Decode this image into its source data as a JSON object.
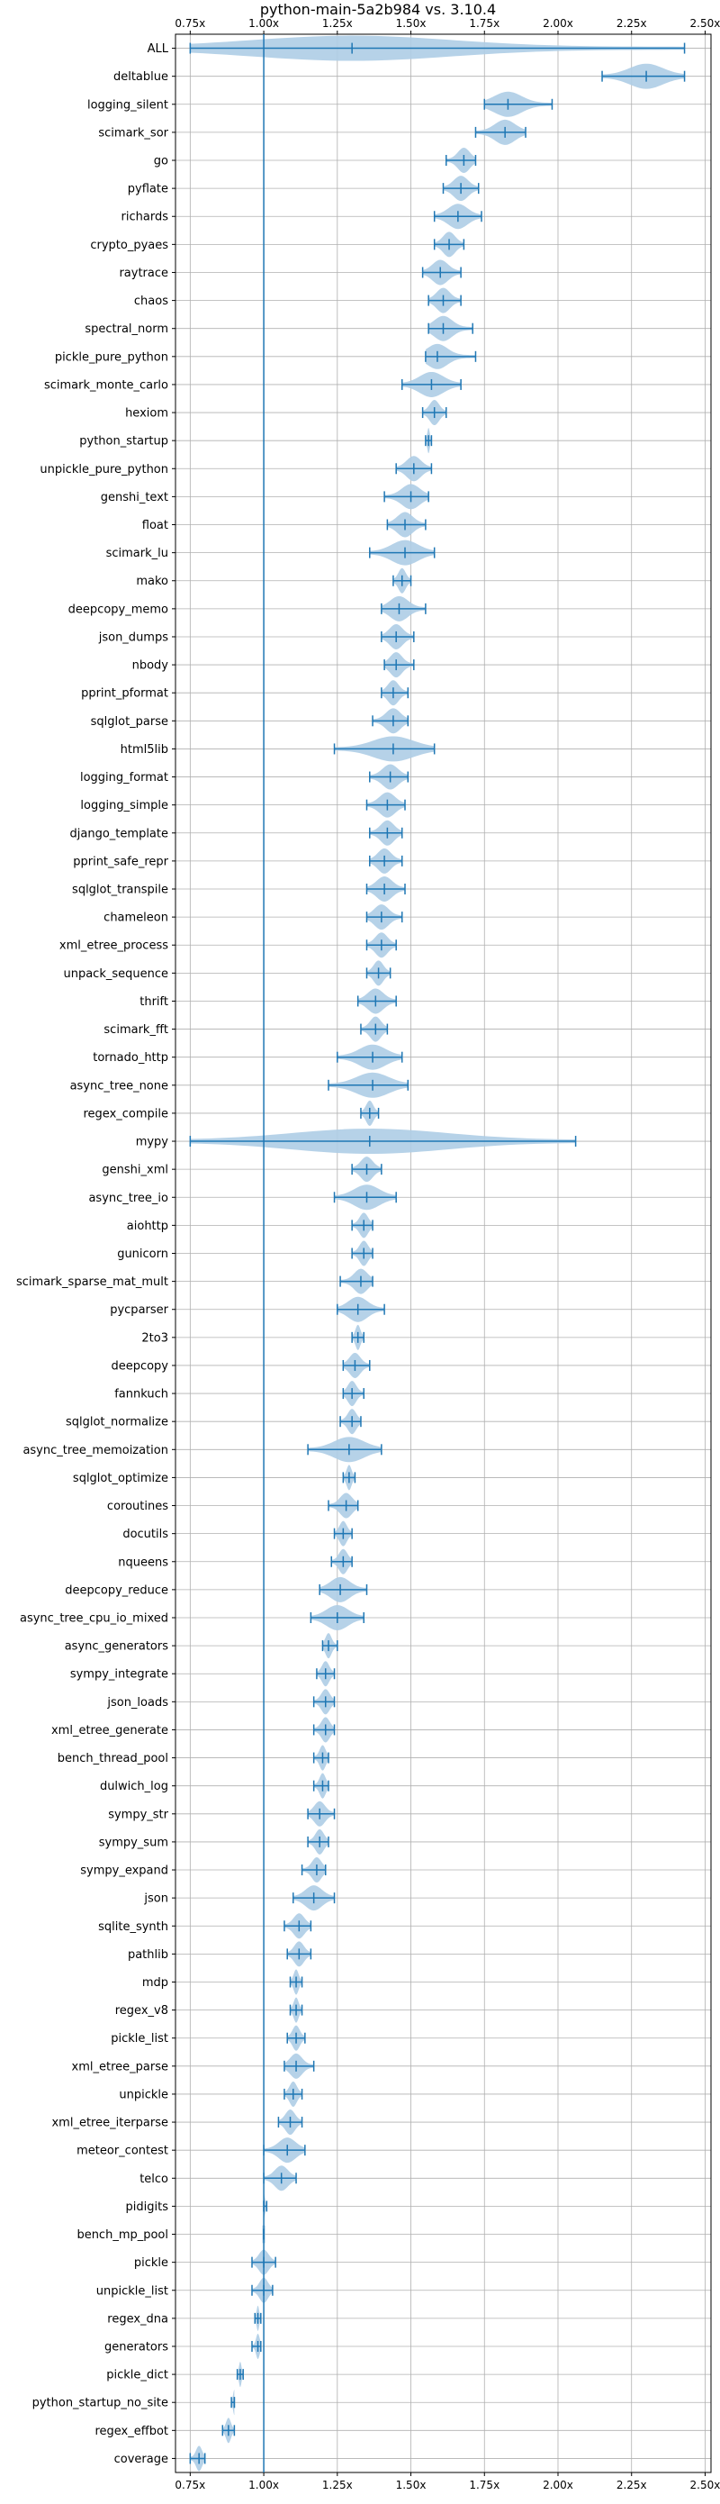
{
  "chart_data": {
    "type": "violin",
    "title": "python-main-5a2b984 vs. 3.10.4",
    "xlim": [
      0.7,
      2.52
    ],
    "xticks": [
      {
        "value": 0.75,
        "label": "0.75x"
      },
      {
        "value": 1.0,
        "label": "1.00x"
      },
      {
        "value": 1.25,
        "label": "1.25x"
      },
      {
        "value": 1.5,
        "label": "1.50x"
      },
      {
        "value": 1.75,
        "label": "1.75x"
      },
      {
        "value": 2.0,
        "label": "2.00x"
      },
      {
        "value": 2.25,
        "label": "2.25x"
      },
      {
        "value": 2.5,
        "label": "2.50x"
      }
    ],
    "reference_line": 1.0,
    "grid": true,
    "colors": {
      "stroke": "#1f77b4",
      "fill": "#aecde6",
      "grid": "#b0b0b0"
    },
    "benchmarks": [
      {
        "name": "ALL",
        "min": 0.75,
        "max": 2.43,
        "median": 1.3
      },
      {
        "name": "deltablue",
        "min": 2.15,
        "max": 2.43,
        "median": 2.3
      },
      {
        "name": "logging_silent",
        "min": 1.75,
        "max": 1.98,
        "median": 1.83
      },
      {
        "name": "scimark_sor",
        "min": 1.72,
        "max": 1.89,
        "median": 1.82
      },
      {
        "name": "go",
        "min": 1.62,
        "max": 1.72,
        "median": 1.68
      },
      {
        "name": "pyflate",
        "min": 1.61,
        "max": 1.73,
        "median": 1.67
      },
      {
        "name": "richards",
        "min": 1.58,
        "max": 1.74,
        "median": 1.66
      },
      {
        "name": "crypto_pyaes",
        "min": 1.58,
        "max": 1.68,
        "median": 1.63
      },
      {
        "name": "raytrace",
        "min": 1.54,
        "max": 1.67,
        "median": 1.6
      },
      {
        "name": "chaos",
        "min": 1.56,
        "max": 1.67,
        "median": 1.61
      },
      {
        "name": "spectral_norm",
        "min": 1.56,
        "max": 1.71,
        "median": 1.61
      },
      {
        "name": "pickle_pure_python",
        "min": 1.55,
        "max": 1.72,
        "median": 1.59
      },
      {
        "name": "scimark_monte_carlo",
        "min": 1.47,
        "max": 1.67,
        "median": 1.57
      },
      {
        "name": "hexiom",
        "min": 1.54,
        "max": 1.62,
        "median": 1.58
      },
      {
        "name": "python_startup",
        "min": 1.55,
        "max": 1.57,
        "median": 1.56
      },
      {
        "name": "unpickle_pure_python",
        "min": 1.45,
        "max": 1.57,
        "median": 1.51
      },
      {
        "name": "genshi_text",
        "min": 1.41,
        "max": 1.56,
        "median": 1.5
      },
      {
        "name": "float",
        "min": 1.42,
        "max": 1.55,
        "median": 1.48
      },
      {
        "name": "scimark_lu",
        "min": 1.36,
        "max": 1.58,
        "median": 1.48
      },
      {
        "name": "mako",
        "min": 1.44,
        "max": 1.5,
        "median": 1.47
      },
      {
        "name": "deepcopy_memo",
        "min": 1.4,
        "max": 1.55,
        "median": 1.46
      },
      {
        "name": "json_dumps",
        "min": 1.4,
        "max": 1.51,
        "median": 1.45
      },
      {
        "name": "nbody",
        "min": 1.41,
        "max": 1.51,
        "median": 1.45
      },
      {
        "name": "pprint_pformat",
        "min": 1.4,
        "max": 1.49,
        "median": 1.44
      },
      {
        "name": "sqlglot_parse",
        "min": 1.37,
        "max": 1.49,
        "median": 1.44
      },
      {
        "name": "html5lib",
        "min": 1.24,
        "max": 1.58,
        "median": 1.44
      },
      {
        "name": "logging_format",
        "min": 1.36,
        "max": 1.49,
        "median": 1.43
      },
      {
        "name": "logging_simple",
        "min": 1.35,
        "max": 1.48,
        "median": 1.42
      },
      {
        "name": "django_template",
        "min": 1.36,
        "max": 1.47,
        "median": 1.42
      },
      {
        "name": "pprint_safe_repr",
        "min": 1.36,
        "max": 1.47,
        "median": 1.41
      },
      {
        "name": "sqlglot_transpile",
        "min": 1.35,
        "max": 1.48,
        "median": 1.41
      },
      {
        "name": "chameleon",
        "min": 1.35,
        "max": 1.47,
        "median": 1.4
      },
      {
        "name": "xml_etree_process",
        "min": 1.35,
        "max": 1.45,
        "median": 1.4
      },
      {
        "name": "unpack_sequence",
        "min": 1.35,
        "max": 1.43,
        "median": 1.39
      },
      {
        "name": "thrift",
        "min": 1.32,
        "max": 1.45,
        "median": 1.38
      },
      {
        "name": "scimark_fft",
        "min": 1.33,
        "max": 1.42,
        "median": 1.38
      },
      {
        "name": "tornado_http",
        "min": 1.25,
        "max": 1.47,
        "median": 1.37
      },
      {
        "name": "async_tree_none",
        "min": 1.22,
        "max": 1.49,
        "median": 1.37
      },
      {
        "name": "regex_compile",
        "min": 1.33,
        "max": 1.39,
        "median": 1.36
      },
      {
        "name": "mypy",
        "min": 0.75,
        "max": 2.06,
        "median": 1.36
      },
      {
        "name": "genshi_xml",
        "min": 1.3,
        "max": 1.4,
        "median": 1.35
      },
      {
        "name": "async_tree_io",
        "min": 1.24,
        "max": 1.45,
        "median": 1.35
      },
      {
        "name": "aiohttp",
        "min": 1.3,
        "max": 1.37,
        "median": 1.34
      },
      {
        "name": "gunicorn",
        "min": 1.3,
        "max": 1.37,
        "median": 1.34
      },
      {
        "name": "scimark_sparse_mat_mult",
        "min": 1.26,
        "max": 1.37,
        "median": 1.33
      },
      {
        "name": "pycparser",
        "min": 1.25,
        "max": 1.41,
        "median": 1.32
      },
      {
        "name": "2to3",
        "min": 1.3,
        "max": 1.34,
        "median": 1.32
      },
      {
        "name": "deepcopy",
        "min": 1.27,
        "max": 1.36,
        "median": 1.31
      },
      {
        "name": "fannkuch",
        "min": 1.27,
        "max": 1.34,
        "median": 1.3
      },
      {
        "name": "sqlglot_normalize",
        "min": 1.26,
        "max": 1.33,
        "median": 1.3
      },
      {
        "name": "async_tree_memoization",
        "min": 1.15,
        "max": 1.4,
        "median": 1.29
      },
      {
        "name": "sqlglot_optimize",
        "min": 1.27,
        "max": 1.31,
        "median": 1.29
      },
      {
        "name": "coroutines",
        "min": 1.22,
        "max": 1.32,
        "median": 1.28
      },
      {
        "name": "docutils",
        "min": 1.24,
        "max": 1.3,
        "median": 1.27
      },
      {
        "name": "nqueens",
        "min": 1.23,
        "max": 1.3,
        "median": 1.27
      },
      {
        "name": "deepcopy_reduce",
        "min": 1.19,
        "max": 1.35,
        "median": 1.26
      },
      {
        "name": "async_tree_cpu_io_mixed",
        "min": 1.16,
        "max": 1.34,
        "median": 1.25
      },
      {
        "name": "async_generators",
        "min": 1.2,
        "max": 1.25,
        "median": 1.22
      },
      {
        "name": "sympy_integrate",
        "min": 1.18,
        "max": 1.24,
        "median": 1.21
      },
      {
        "name": "json_loads",
        "min": 1.17,
        "max": 1.24,
        "median": 1.21
      },
      {
        "name": "xml_etree_generate",
        "min": 1.17,
        "max": 1.24,
        "median": 1.21
      },
      {
        "name": "bench_thread_pool",
        "min": 1.17,
        "max": 1.22,
        "median": 1.2
      },
      {
        "name": "dulwich_log",
        "min": 1.17,
        "max": 1.22,
        "median": 1.2
      },
      {
        "name": "sympy_str",
        "min": 1.15,
        "max": 1.24,
        "median": 1.19
      },
      {
        "name": "sympy_sum",
        "min": 1.15,
        "max": 1.22,
        "median": 1.19
      },
      {
        "name": "sympy_expand",
        "min": 1.13,
        "max": 1.21,
        "median": 1.18
      },
      {
        "name": "json",
        "min": 1.1,
        "max": 1.24,
        "median": 1.17
      },
      {
        "name": "sqlite_synth",
        "min": 1.07,
        "max": 1.16,
        "median": 1.12
      },
      {
        "name": "pathlib",
        "min": 1.08,
        "max": 1.16,
        "median": 1.12
      },
      {
        "name": "mdp",
        "min": 1.09,
        "max": 1.13,
        "median": 1.11
      },
      {
        "name": "regex_v8",
        "min": 1.09,
        "max": 1.13,
        "median": 1.11
      },
      {
        "name": "pickle_list",
        "min": 1.08,
        "max": 1.14,
        "median": 1.11
      },
      {
        "name": "xml_etree_parse",
        "min": 1.07,
        "max": 1.17,
        "median": 1.11
      },
      {
        "name": "unpickle",
        "min": 1.07,
        "max": 1.13,
        "median": 1.1
      },
      {
        "name": "xml_etree_iterparse",
        "min": 1.05,
        "max": 1.13,
        "median": 1.09
      },
      {
        "name": "meteor_contest",
        "min": 1.0,
        "max": 1.14,
        "median": 1.08
      },
      {
        "name": "telco",
        "min": 1.0,
        "max": 1.11,
        "median": 1.06
      },
      {
        "name": "pidigits",
        "min": 1.0,
        "max": 1.01,
        "median": 1.0
      },
      {
        "name": "bench_mp_pool",
        "min": 1.0,
        "max": 1.0,
        "median": 1.0
      },
      {
        "name": "pickle",
        "min": 0.96,
        "max": 1.04,
        "median": 1.0
      },
      {
        "name": "unpickle_list",
        "min": 0.96,
        "max": 1.03,
        "median": 1.0
      },
      {
        "name": "regex_dna",
        "min": 0.97,
        "max": 0.99,
        "median": 0.98
      },
      {
        "name": "generators",
        "min": 0.96,
        "max": 0.99,
        "median": 0.98
      },
      {
        "name": "pickle_dict",
        "min": 0.91,
        "max": 0.93,
        "median": 0.92
      },
      {
        "name": "python_startup_no_site",
        "min": 0.89,
        "max": 0.9,
        "median": 0.9
      },
      {
        "name": "regex_effbot",
        "min": 0.86,
        "max": 0.9,
        "median": 0.88
      },
      {
        "name": "coverage",
        "min": 0.75,
        "max": 0.8,
        "median": 0.78
      }
    ]
  }
}
